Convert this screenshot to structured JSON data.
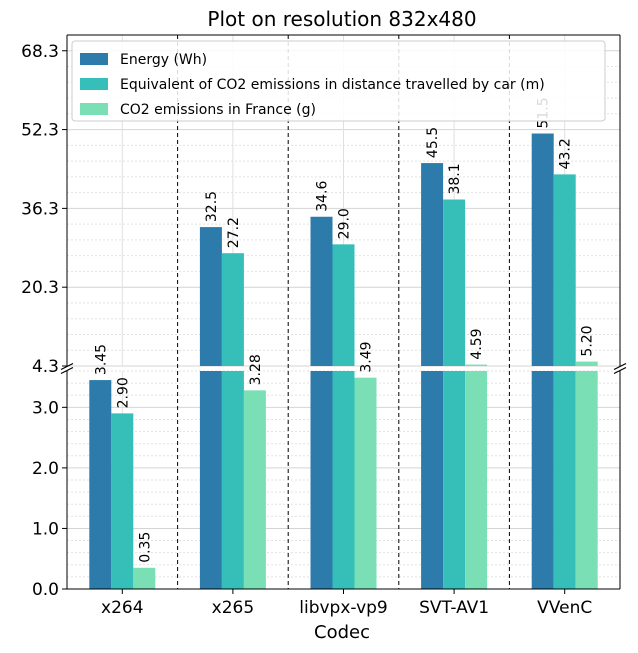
{
  "chart_data": {
    "type": "bar",
    "title": "Plot on resolution 832x480",
    "xlabel": "Codec",
    "ylabel": "",
    "categories": [
      "x264",
      "x265",
      "libvpx-vp9",
      "SVT-AV1",
      "VVenC"
    ],
    "series": [
      {
        "name": "Energy (Wh)",
        "color": "#2c7bab",
        "values": [
          3.45,
          32.5,
          34.6,
          45.5,
          51.5
        ],
        "labels": [
          "3.45",
          "32.5",
          "34.6",
          "45.5",
          "51.5"
        ]
      },
      {
        "name": "Equivalent of CO2 emissions in distance travelled by car (m)",
        "color": "#35bfb8",
        "values": [
          2.9,
          27.2,
          29.0,
          38.1,
          43.2
        ],
        "labels": [
          "2.90",
          "27.2",
          "29.0",
          "38.1",
          "43.2"
        ]
      },
      {
        "name": "CO2 emissions in France (g)",
        "color": "#7adfb5",
        "values": [
          0.35,
          3.28,
          3.49,
          4.59,
          5.2
        ],
        "labels": [
          "0.35",
          "3.28",
          "3.49",
          "4.59",
          "5.20"
        ]
      }
    ],
    "broken_axis": true,
    "lower_ylim": [
      0,
      3.6
    ],
    "lower_ticks": [
      "0.0",
      "1.0",
      "2.0",
      "3.0"
    ],
    "upper_ylim": [
      4.3,
      71.5
    ],
    "upper_ticks": [
      "4.3",
      "20.3",
      "36.3",
      "52.3",
      "68.3"
    ],
    "grid": true,
    "legend_position": "top-left"
  }
}
